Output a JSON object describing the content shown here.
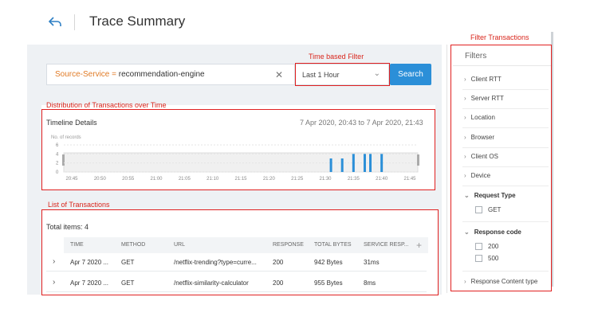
{
  "header": {
    "title": "Trace Summary",
    "back_icon": "back-arrow-icon"
  },
  "search": {
    "key": "Source-Service = ",
    "value": "recommendation-engine",
    "clear_icon": "close-icon",
    "time_filter": "Last 1 Hour",
    "search_button": "Search"
  },
  "timeline": {
    "title": "Timeline Details",
    "range": "7 Apr 2020, 20:43 to 7 Apr 2020, 21:43"
  },
  "chart_data": {
    "type": "bar",
    "ylabel": "No. of records",
    "yticks": [
      "6",
      "4",
      "2",
      "0"
    ],
    "ylim": [
      0,
      6
    ],
    "categories": [
      "20:45",
      "20:50",
      "20:55",
      "21:00",
      "21:05",
      "21:10",
      "21:15",
      "21:20",
      "21:25",
      "21:30",
      "21:35",
      "21:40",
      "21:45"
    ],
    "bars": [
      {
        "x": "21:31",
        "value": 3
      },
      {
        "x": "21:33",
        "value": 3
      },
      {
        "x": "21:35",
        "value": 4
      },
      {
        "x": "21:37",
        "value": 4
      },
      {
        "x": "21:38",
        "value": 4
      },
      {
        "x": "21:40",
        "value": 4
      }
    ],
    "bar_color": "#2b8fd8"
  },
  "table": {
    "total": "Total items: 4",
    "columns": [
      "TIME",
      "METHOD",
      "URL",
      "RESPONSE",
      "TOTAL BYTES",
      "SERVICE RESP..."
    ],
    "add_icon": "+",
    "rows": [
      {
        "time": "Apr 7 2020 ...",
        "method": "GET",
        "url": "/netflix-trending?type=curre...",
        "response": "200",
        "bytes": "942 Bytes",
        "service": "31ms"
      },
      {
        "time": "Apr 7 2020 ...",
        "method": "GET",
        "url": "/netflix-similarity-calculator",
        "response": "200",
        "bytes": "955 Bytes",
        "service": "8ms"
      }
    ]
  },
  "annotations": {
    "time_filter": "Time based Filter",
    "distribution": "Distribution of Transactions over Time",
    "list": "List of Transactions",
    "filters": "Filter Transactions"
  },
  "filters": {
    "title": "Filters",
    "items": [
      "Client RTT",
      "Server RTT",
      "Location",
      "Browser",
      "Client OS",
      "Device"
    ],
    "request_type": {
      "label": "Request Type",
      "options": [
        "GET"
      ]
    },
    "response_code": {
      "label": "Response code",
      "options": [
        "200",
        "500"
      ]
    },
    "content_type": "Response Content type"
  },
  "colors": {
    "accent": "#2b8fd8",
    "annotation": "#d9261c",
    "source_key": "#e07b26"
  }
}
